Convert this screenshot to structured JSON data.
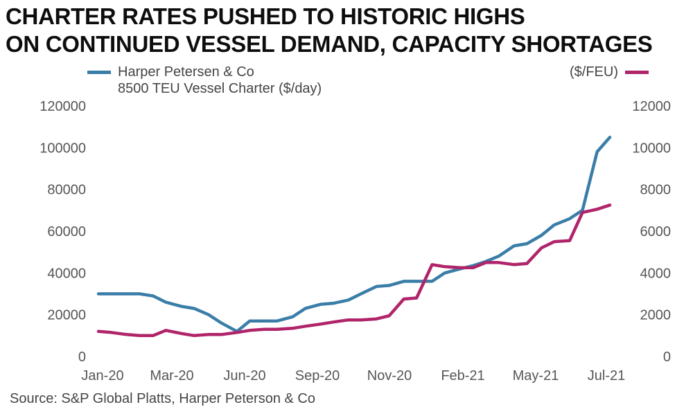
{
  "title_lines": [
    "CHARTER RATES PUSHED TO HISTORIC HIGHS",
    "ON CONTINUED VESSEL DEMAND, CAPACITY SHORTAGES"
  ],
  "source": "Source: S&P Global Platts, Harper Peterson & Co",
  "colors": {
    "blue": "#3a7ea8",
    "magenta": "#b0246a"
  },
  "chart_data": {
    "type": "line",
    "title": "CHARTER RATES PUSHED TO HISTORIC HIGHS ON CONTINUED VESSEL DEMAND, CAPACITY SHORTAGES",
    "legend": {
      "left": [
        "Harper Petersen & Co",
        "8500 TEU Vessel Charter ($/day)"
      ],
      "right": "($/FEU)"
    },
    "x_tick_labels": [
      "Jan-20",
      "Mar-20",
      "Jun-20",
      "Sep-20",
      "Nov-20",
      "Feb-21",
      "May-21",
      "Jul-21"
    ],
    "x_range": [
      "2020-01",
      "2021-07"
    ],
    "y_left": {
      "ticks": [
        0,
        20000,
        40000,
        60000,
        80000,
        100000,
        120000
      ],
      "range": [
        0,
        120000
      ]
    },
    "y_right": {
      "ticks": [
        0,
        2000,
        4000,
        6000,
        8000,
        10000,
        12000
      ],
      "range": [
        0,
        12000
      ]
    },
    "grid": false,
    "series": [
      {
        "name": "Harper Petersen & Co 8500 TEU Vessel Charter ($/day)",
        "axis": "left",
        "color": "#3a7ea8",
        "x": [
          "2020-01-01",
          "2020-01-15",
          "2020-02-01",
          "2020-02-15",
          "2020-03-01",
          "2020-03-15",
          "2020-04-01",
          "2020-04-15",
          "2020-05-01",
          "2020-05-15",
          "2020-06-01",
          "2020-06-15",
          "2020-07-01",
          "2020-07-15",
          "2020-08-01",
          "2020-08-15",
          "2020-09-01",
          "2020-09-15",
          "2020-10-01",
          "2020-10-15",
          "2020-11-01",
          "2020-11-15",
          "2020-12-01",
          "2020-12-15",
          "2021-01-01",
          "2021-01-15",
          "2021-02-01",
          "2021-02-15",
          "2021-03-01",
          "2021-03-15",
          "2021-04-01",
          "2021-04-15",
          "2021-05-01",
          "2021-05-15",
          "2021-06-01",
          "2021-06-15",
          "2021-07-01",
          "2021-07-15"
        ],
        "values": [
          30000,
          30000,
          30000,
          30000,
          29000,
          26000,
          24000,
          23000,
          20000,
          16000,
          12000,
          17000,
          17000,
          17000,
          19000,
          23000,
          25000,
          25500,
          27000,
          30000,
          33500,
          34000,
          36000,
          36000,
          36000,
          40000,
          42000,
          43500,
          45500,
          48000,
          53000,
          54000,
          58000,
          63000,
          66000,
          70000,
          98000,
          105000
        ]
      },
      {
        "name": "$/FEU",
        "axis": "right",
        "color": "#b0246a",
        "x": [
          "2020-01-01",
          "2020-01-15",
          "2020-02-01",
          "2020-02-15",
          "2020-03-01",
          "2020-03-15",
          "2020-04-01",
          "2020-04-15",
          "2020-05-01",
          "2020-05-15",
          "2020-06-01",
          "2020-06-15",
          "2020-07-01",
          "2020-07-15",
          "2020-08-01",
          "2020-08-15",
          "2020-09-01",
          "2020-09-15",
          "2020-10-01",
          "2020-10-15",
          "2020-11-01",
          "2020-11-15",
          "2020-12-01",
          "2020-12-15",
          "2021-01-01",
          "2021-01-15",
          "2021-02-01",
          "2021-02-15",
          "2021-03-01",
          "2021-03-15",
          "2021-04-01",
          "2021-04-15",
          "2021-05-01",
          "2021-05-15",
          "2021-06-01",
          "2021-06-15",
          "2021-07-01",
          "2021-07-15"
        ],
        "values": [
          1200,
          1150,
          1050,
          1000,
          1000,
          1250,
          1100,
          1000,
          1050,
          1050,
          1150,
          1250,
          1300,
          1300,
          1350,
          1450,
          1550,
          1650,
          1750,
          1750,
          1800,
          1950,
          2750,
          2800,
          4400,
          4300,
          4250,
          4250,
          4500,
          4500,
          4400,
          4450,
          5200,
          5500,
          5550,
          6900,
          7050,
          7250
        ]
      }
    ]
  }
}
